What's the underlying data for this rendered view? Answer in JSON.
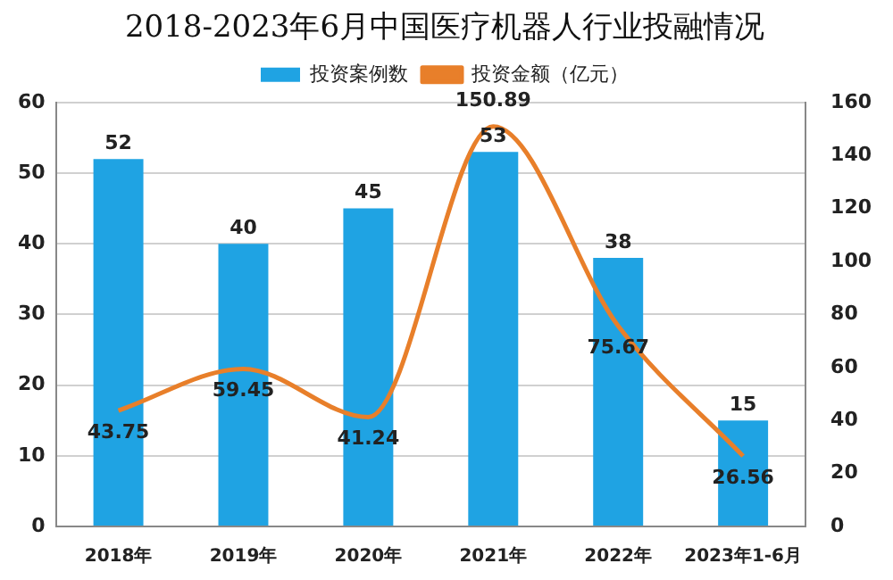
{
  "chart_data": {
    "type": "bar",
    "title": "2018-2023年6月中国医疗机器人行业投融情况",
    "categories": [
      "2018年",
      "2019年",
      "2020年",
      "2021年",
      "2022年",
      "2023年1-6月"
    ],
    "series": [
      {
        "name": "投资案例数",
        "color": "#1fa3e3",
        "values": [
          52,
          40,
          45,
          53,
          38,
          15
        ]
      },
      {
        "name": "投资金额（亿元）",
        "type": "line",
        "axis": "y2",
        "color": "#e87f2a",
        "values": [
          43.75,
          59.45,
          41.24,
          150.89,
          75.67,
          26.56
        ]
      }
    ],
    "ylim": [
      0,
      60
    ],
    "yticks": [
      0,
      10,
      20,
      30,
      40,
      50,
      60
    ],
    "y2lim": [
      0,
      160
    ],
    "y2ticks": [
      0,
      20,
      40,
      60,
      80,
      100,
      120,
      140,
      160
    ],
    "grid": "y",
    "legend": "top",
    "data_labels": true,
    "marker": "none"
  }
}
